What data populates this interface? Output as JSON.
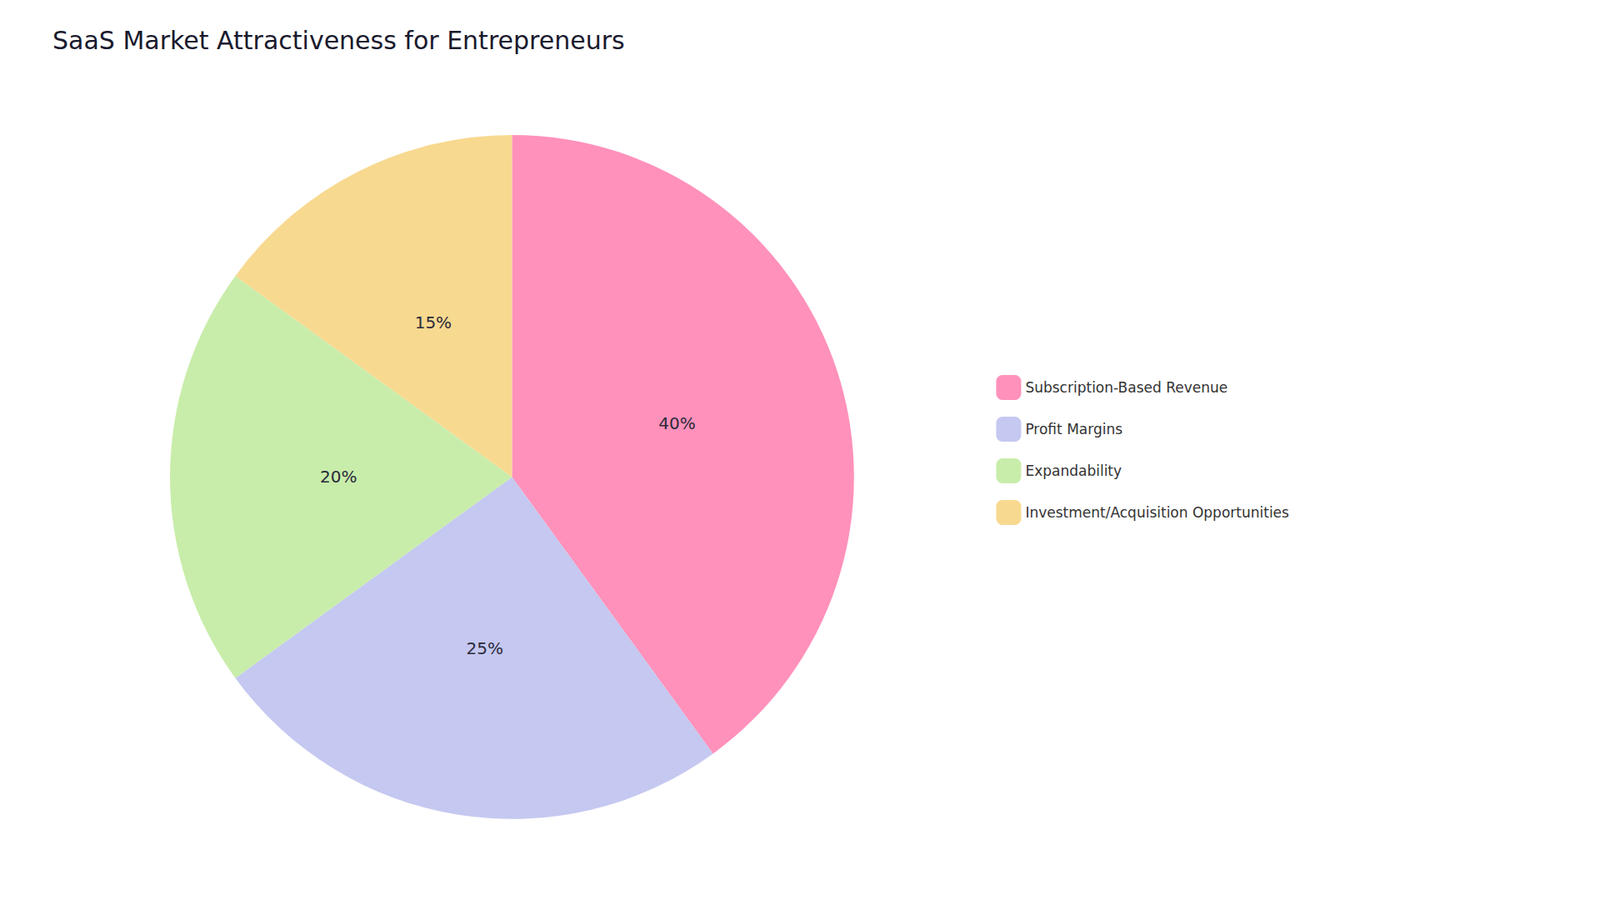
{
  "chart_data": {
    "type": "pie",
    "title": "SaaS Market Attractiveness for Entrepreneurs",
    "categories": [
      "Subscription-Based Revenue",
      "Profit Margins",
      "Expandability",
      "Investment/Acquisition Opportunities"
    ],
    "values": [
      40,
      25,
      20,
      15
    ],
    "value_labels": [
      "40%",
      "25%",
      "20%",
      "15%"
    ],
    "colors": [
      "#FF91BB",
      "#C5C8F0",
      "#C8EDAA",
      "#F8D990"
    ],
    "data_labels": true,
    "legend": "right"
  }
}
